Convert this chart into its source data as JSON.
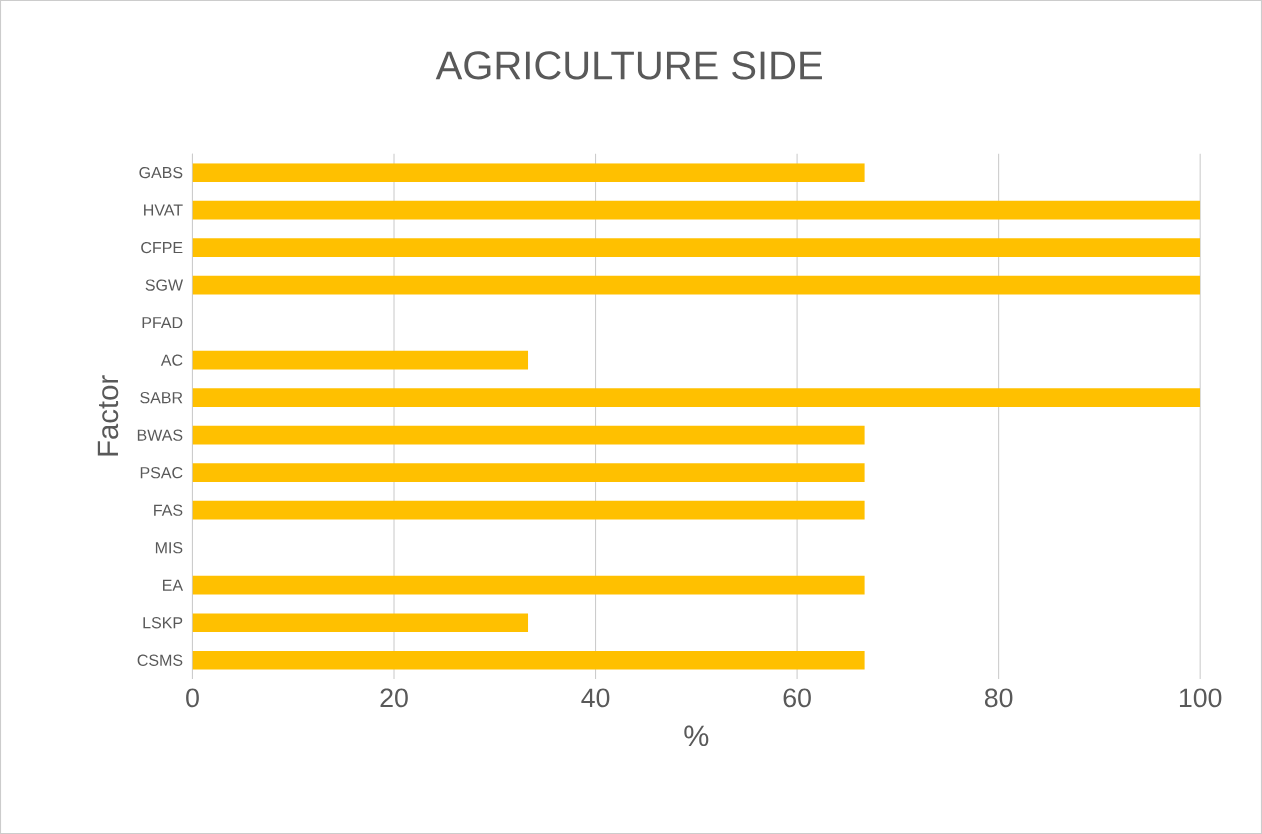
{
  "chart_data": {
    "type": "bar",
    "orientation": "horizontal",
    "title": "AGRICULTURE SIDE",
    "xlabel": "%",
    "ylabel": "Factor",
    "categories": [
      "GABS",
      "HVAT",
      "CFPE",
      "SGW",
      "PFAD",
      "AC",
      "SABR",
      "BWAS",
      "PSAC",
      "FAS",
      "MIS",
      "EA",
      "LSKP",
      "CSMS"
    ],
    "values": [
      66.7,
      100,
      100,
      100,
      0,
      33.3,
      100,
      66.7,
      66.7,
      66.7,
      0,
      66.7,
      33.3,
      66.7
    ],
    "color": "#ffc000",
    "xlim": [
      0,
      100
    ],
    "xticks": [
      0,
      20,
      40,
      60,
      80,
      100
    ],
    "grid": "x"
  }
}
